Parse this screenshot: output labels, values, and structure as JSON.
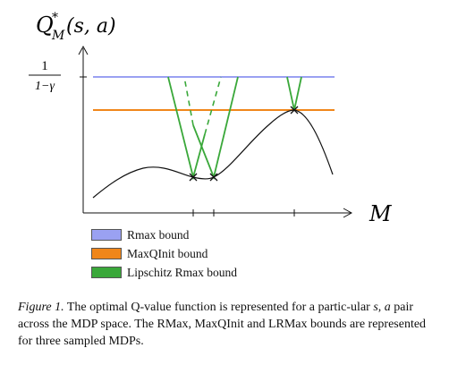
{
  "figure": {
    "y_axis_label": "Q*_M(s, a)",
    "y_axis_main": "Q",
    "y_axis_sup": "*",
    "y_axis_sub": "M",
    "y_axis_args": "(s, a)",
    "x_axis_label": "M",
    "y_tick_numerator": "1",
    "y_tick_denominator": "1−γ"
  },
  "legend": {
    "items": [
      {
        "label": "Rmax bound",
        "color": "#9aa1f2"
      },
      {
        "label": "MaxQInit bound",
        "color": "#f0861a"
      },
      {
        "label": "Lipschitz Rmax bound",
        "color": "#3aa83a"
      }
    ]
  },
  "caption": {
    "lead": "Figure 1.",
    "text_1": "The optimal Q-value function is represented for a partic-ular",
    "math_s": "s",
    "comma": ",",
    "math_a": "a",
    "text_2": "pair across the MDP space. The RMax, MaxQInit and LRMax bounds are represented for three sampled MDPs."
  },
  "colors": {
    "rmax": "#9aa1f2",
    "maxqinit": "#f0861a",
    "lipschitz": "#3aa83a",
    "curve": "#111111"
  }
}
